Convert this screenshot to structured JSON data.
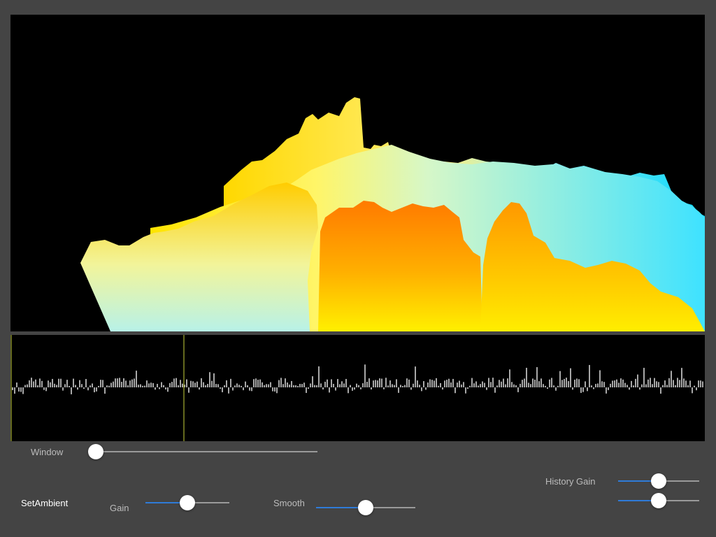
{
  "visualizer": {
    "colors": {
      "cyan": "#00d8ff",
      "yellow": "#ffe800",
      "orange": "#ff7a00"
    }
  },
  "waveform": {
    "bar_color": "#a8a8a8",
    "playhead_color": "#c8d23c",
    "playhead_position": 0.25
  },
  "controls": {
    "window": {
      "label": "Window",
      "value": 0.0
    },
    "set_ambient": {
      "label": "SetAmbient"
    },
    "gain": {
      "label": "Gain",
      "value": 0.5
    },
    "smooth": {
      "label": "Smooth",
      "value": 0.5
    },
    "history_gain": {
      "label": "History Gain",
      "value": 0.5
    },
    "history_gain_2": {
      "value": 0.5
    }
  }
}
